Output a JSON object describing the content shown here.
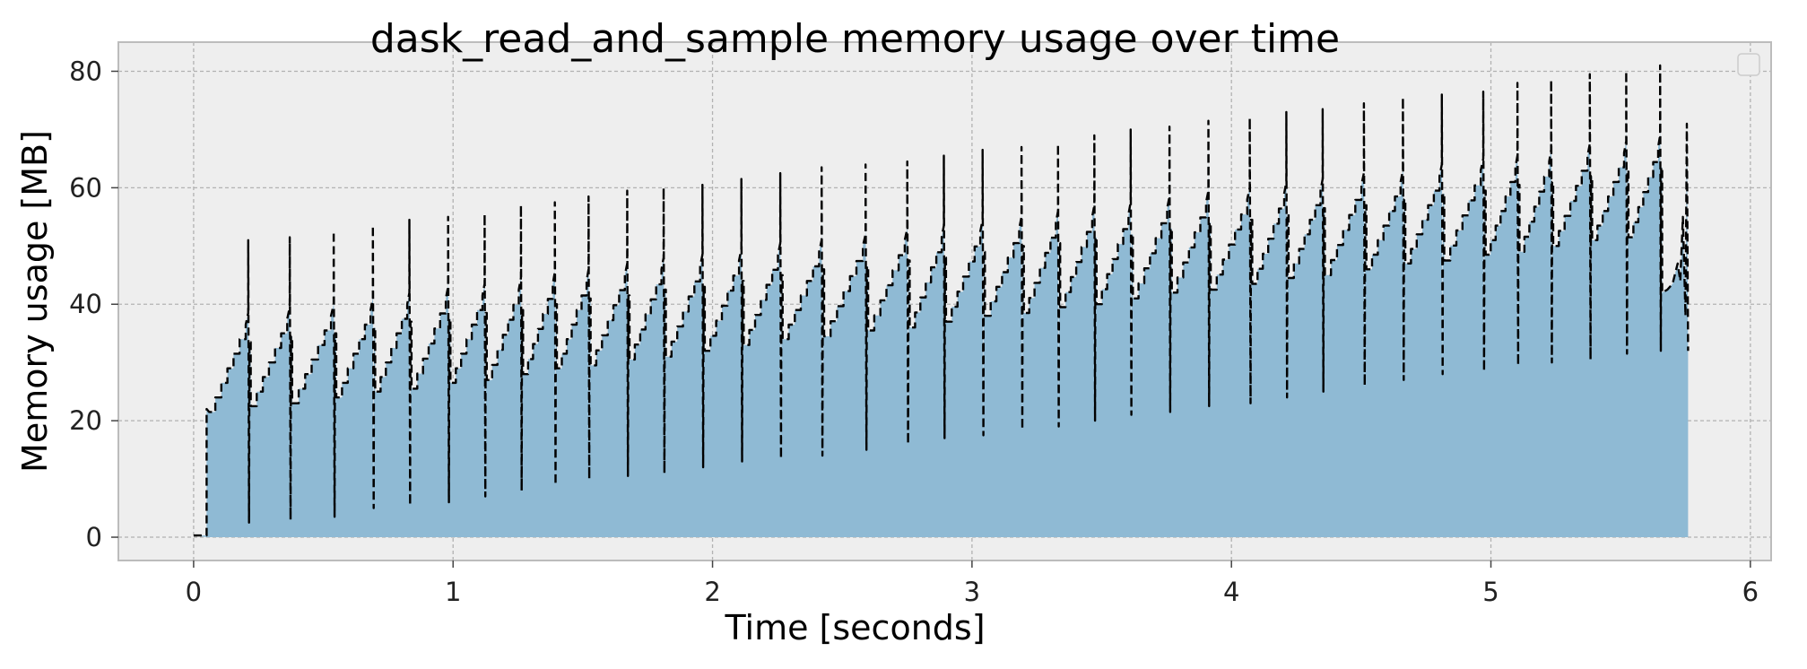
{
  "chart_data": {
    "type": "area",
    "title": "dask_read_and_sample memory usage over time",
    "xlabel": "Time [seconds]",
    "ylabel": "Memory usage [MB]",
    "xlim": [
      -0.29,
      6.08
    ],
    "ylim": [
      -4,
      85
    ],
    "xticks": [
      0,
      1,
      2,
      3,
      4,
      5,
      6
    ],
    "yticks": [
      0,
      20,
      40,
      60,
      80
    ],
    "grid": true,
    "legend": "top-right, empty",
    "background_color": "#eeeeee",
    "fill_color": "#8fbad4",
    "line_color": "#000000",
    "line_style": "dashed",
    "series": [
      {
        "shape": "sawtooth memory trace",
        "start": {
          "x": 0.0,
          "y": 0.3
        },
        "step_up": {
          "x": 0.05,
          "y": 22.0
        },
        "end_x": 5.76,
        "end_y": 32,
        "cycles": [
          {
            "x0": 0.06,
            "low": 21.5,
            "high": 36.5,
            "peak": 51.0,
            "trough": 2.5
          },
          {
            "x0": 0.22,
            "low": 22.5,
            "high": 37.5,
            "peak": 51.5,
            "trough": 3.0
          },
          {
            "x0": 0.38,
            "low": 23.0,
            "high": 38.0,
            "peak": 52.5,
            "trough": 3.5
          },
          {
            "x0": 0.55,
            "low": 24.0,
            "high": 39.0,
            "peak": 53.5,
            "trough": 5.0
          },
          {
            "x0": 0.7,
            "low": 25.0,
            "high": 40.0,
            "peak": 54.5,
            "trough": 5.5
          },
          {
            "x0": 0.84,
            "low": 25.5,
            "high": 41.0,
            "peak": 55.0,
            "trough": 6.0
          },
          {
            "x0": 0.99,
            "low": 26.5,
            "high": 41.5,
            "peak": 55.5,
            "trough": 7.0
          },
          {
            "x0": 1.13,
            "low": 27.0,
            "high": 42.5,
            "peak": 57.0,
            "trough": 8.0
          },
          {
            "x0": 1.27,
            "low": 28.0,
            "high": 43.5,
            "peak": 57.5,
            "trough": 9.0
          },
          {
            "x0": 1.4,
            "low": 29.0,
            "high": 44.0,
            "peak": 58.5,
            "trough": 10.0
          },
          {
            "x0": 1.53,
            "low": 29.5,
            "high": 45.0,
            "peak": 59.5,
            "trough": 10.5
          },
          {
            "x0": 1.68,
            "low": 30.5,
            "high": 46.0,
            "peak": 60.0,
            "trough": 11.0
          },
          {
            "x0": 1.82,
            "low": 31.0,
            "high": 46.5,
            "peak": 60.5,
            "trough": 12.0
          },
          {
            "x0": 1.97,
            "low": 32.0,
            "high": 47.5,
            "peak": 61.5,
            "trough": 13.0
          },
          {
            "x0": 2.12,
            "low": 33.0,
            "high": 48.5,
            "peak": 62.5,
            "trough": 13.5
          },
          {
            "x0": 2.27,
            "low": 34.0,
            "high": 49.0,
            "peak": 63.5,
            "trough": 14.0
          },
          {
            "x0": 2.43,
            "low": 34.5,
            "high": 50.0,
            "peak": 64.0,
            "trough": 15.0
          },
          {
            "x0": 2.6,
            "low": 35.5,
            "high": 51.0,
            "peak": 64.5,
            "trough": 16.0
          },
          {
            "x0": 2.76,
            "low": 36.0,
            "high": 51.5,
            "peak": 65.5,
            "trough": 17.0
          },
          {
            "x0": 2.9,
            "low": 37.0,
            "high": 52.5,
            "peak": 66.5,
            "trough": 17.5
          },
          {
            "x0": 3.05,
            "low": 38.0,
            "high": 53.0,
            "peak": 67.0,
            "trough": 18.5
          },
          {
            "x0": 3.2,
            "low": 38.5,
            "high": 54.0,
            "peak": 67.5,
            "trough": 19.0
          },
          {
            "x0": 3.34,
            "low": 39.5,
            "high": 55.0,
            "peak": 69.0,
            "trough": 20.0
          },
          {
            "x0": 3.48,
            "low": 40.0,
            "high": 55.5,
            "peak": 70.0,
            "trough": 21.0
          },
          {
            "x0": 3.62,
            "low": 41.0,
            "high": 56.5,
            "peak": 70.5,
            "trough": 21.5
          },
          {
            "x0": 3.77,
            "low": 42.0,
            "high": 57.5,
            "peak": 71.5,
            "trough": 22.5
          },
          {
            "x0": 3.92,
            "low": 42.5,
            "high": 58.0,
            "peak": 72.0,
            "trough": 23.0
          },
          {
            "x0": 4.08,
            "low": 43.5,
            "high": 59.0,
            "peak": 73.0,
            "trough": 24.0
          },
          {
            "x0": 4.22,
            "low": 44.5,
            "high": 59.5,
            "peak": 73.5,
            "trough": 25.0
          },
          {
            "x0": 4.36,
            "low": 45.0,
            "high": 60.5,
            "peak": 74.5,
            "trough": 26.0
          },
          {
            "x0": 4.52,
            "low": 46.0,
            "high": 61.0,
            "peak": 75.5,
            "trough": 27.0
          },
          {
            "x0": 4.67,
            "low": 47.0,
            "high": 62.0,
            "peak": 76.0,
            "trough": 28.0
          },
          {
            "x0": 4.82,
            "low": 47.5,
            "high": 63.0,
            "peak": 76.5,
            "trough": 28.5
          },
          {
            "x0": 4.98,
            "low": 48.5,
            "high": 63.5,
            "peak": 78.0,
            "trough": 29.5
          },
          {
            "x0": 5.11,
            "low": 49.0,
            "high": 64.5,
            "peak": 78.5,
            "trough": 30.0
          },
          {
            "x0": 5.24,
            "low": 50.0,
            "high": 65.5,
            "peak": 79.5,
            "trough": 30.5
          },
          {
            "x0": 5.39,
            "low": 51.0,
            "high": 66.0,
            "peak": 80.0,
            "trough": 31.5
          },
          {
            "x0": 5.53,
            "low": 51.5,
            "high": 67.0,
            "peak": 81.0,
            "trough": 32.0
          }
        ],
        "tail": [
          [
            5.66,
            42.0
          ],
          [
            5.68,
            42.5
          ],
          [
            5.7,
            43.5
          ],
          [
            5.72,
            47.0
          ],
          [
            5.73,
            44.0
          ],
          [
            5.74,
            55.0
          ],
          [
            5.75,
            38.0
          ],
          [
            5.755,
            71.0
          ],
          [
            5.76,
            32.0
          ]
        ]
      }
    ]
  }
}
